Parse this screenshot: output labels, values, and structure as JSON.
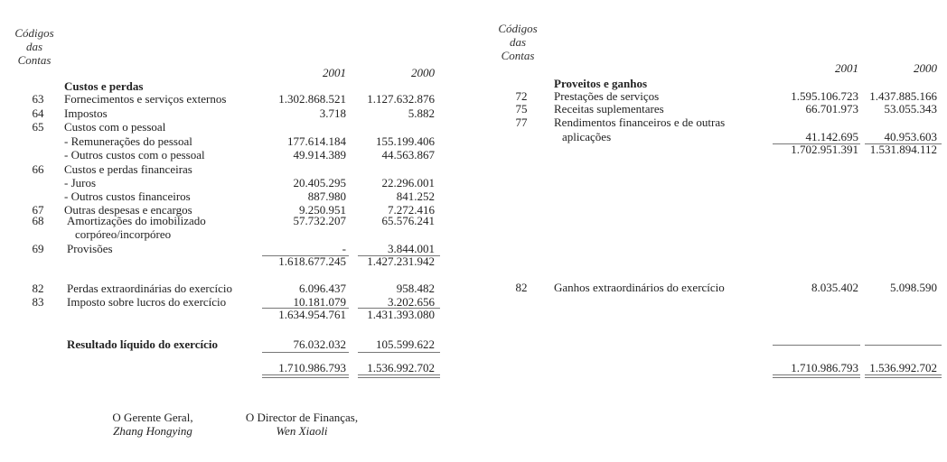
{
  "header": {
    "codes_line1": "Códigos",
    "codes_line2": "das",
    "codes_line3": "Contas",
    "year1": "2001",
    "year2": "2000"
  },
  "costs": {
    "title": "Custos e perdas",
    "rows": [
      {
        "code": "63",
        "label": "Fornecimentos e serviços externos",
        "y2001": "1.302.868.521",
        "y2000": "1.127.632.876"
      },
      {
        "code": "64",
        "label": "Impostos",
        "y2001": "3.718",
        "y2000": "5.882"
      },
      {
        "code": "65",
        "label": "Custos com o pessoal"
      },
      {
        "label": "- Remunerações do pessoal",
        "y2001": "177.614.184",
        "y2000": "155.199.406"
      },
      {
        "label": "- Outros custos com o pessoal",
        "y2001": "49.914.389",
        "y2000": "44.563.867"
      },
      {
        "code": "66",
        "label": "Custos e perdas financeiras"
      },
      {
        "label": "- Juros",
        "y2001": "20.405.295",
        "y2000": "22.296.001"
      },
      {
        "label": "- Outros custos financeiros",
        "y2001": "887.980",
        "y2000": "841.252"
      },
      {
        "code": "67",
        "label": "Outras despesas e encargos",
        "y2001": "9.250.951",
        "y2000": "7.272.416"
      },
      {
        "code": "68",
        "label": "Amortizações do imobilizado",
        "label2": "corpóreo/incorpóreo",
        "y2001": "57.732.207",
        "y2000": "65.576.241"
      },
      {
        "code": "69",
        "label": "Provisões",
        "y2001": "-",
        "y2000": "3.844.001"
      }
    ],
    "subtotal1": {
      "y2001": "1.618.677.245",
      "y2000": "1.427.231.942"
    },
    "extra_rows": [
      {
        "code": "82",
        "label": "Perdas extraordinárias do exercício",
        "y2001": "6.096.437",
        "y2000": "958.482"
      },
      {
        "code": "83",
        "label": "Imposto sobre lucros do exercício",
        "y2001": "10.181.079",
        "y2000": "3.202.656"
      }
    ],
    "subtotal2": {
      "y2001": "1.634.954.761",
      "y2000": "1.431.393.080"
    },
    "net_result": {
      "label": "Resultado líquido do exercício",
      "y2001": "76.032.032",
      "y2000": "105.599.622"
    },
    "total": {
      "y2001": "1.710.986.793",
      "y2000": "1.536.992.702"
    }
  },
  "income": {
    "title": "Proveitos e ganhos",
    "rows": [
      {
        "code": "72",
        "label": "Prestações de serviços",
        "y2001": "1.595.106.723",
        "y2000": "1.437.885.166"
      },
      {
        "code": "75",
        "label": "Receitas suplementares",
        "y2001": "66.701.973",
        "y2000": "53.055.343"
      },
      {
        "code": "77",
        "label": "Rendimentos financeiros e de outras",
        "label2": "aplicações",
        "y2001": "41.142.695",
        "y2000": "40.953.603"
      }
    ],
    "subtotal": {
      "y2001": "1.702.951.391",
      "y2000": "1.531.894.112"
    },
    "extra_rows": [
      {
        "code": "82",
        "label": "Ganhos extraordinários do exercício",
        "y2001": "8.035.402",
        "y2000": "5.098.590"
      }
    ],
    "total": {
      "y2001": "1.710.986.793",
      "y2000": "1.536.992.702"
    }
  },
  "signatures": [
    {
      "title": "O Gerente Geral,",
      "name": "Zhang Hongying"
    },
    {
      "title": "O Director de Finanças,",
      "name": "Wen Xiaoli"
    }
  ]
}
